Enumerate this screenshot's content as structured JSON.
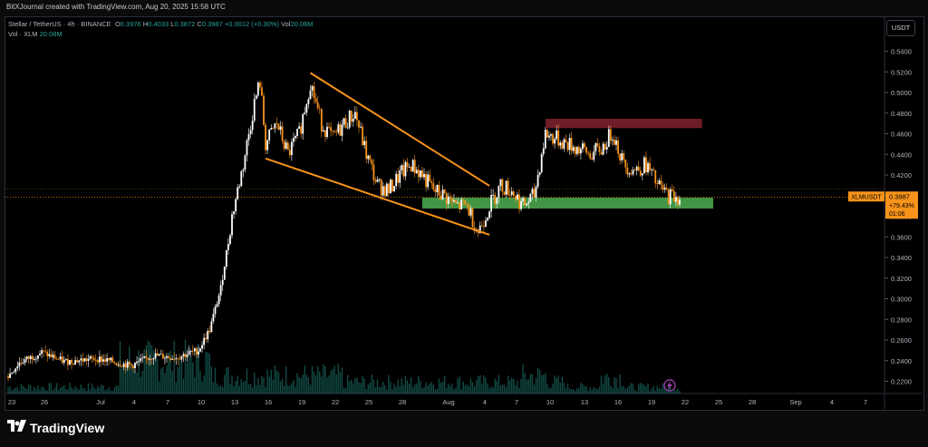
{
  "header": {
    "author_line": "BitXJournal created with TradingView.com, Aug 20, 2025 15:58 UTC",
    "symbol": "Stellar / TetherUS · 4h · BINANCE",
    "ohlc": {
      "o_label": "O",
      "o": "0.3976",
      "h_label": "H",
      "h": "0.4033",
      "l_label": "L",
      "l": "0.3872",
      "c_label": "C",
      "c": "0.3987",
      "change": "+0.0012 (+0.30%)",
      "vol_label": "Vol",
      "vol": "20.08M"
    },
    "volume_legend": {
      "label": "Vol · XLM",
      "value": "20.08M"
    }
  },
  "currency_button": "USDT",
  "price_tag": {
    "symbol": "XLMUSDT",
    "price": "0.3987",
    "change": "+79.43%",
    "countdown": "01:06"
  },
  "branding": "TradingView",
  "chart_data": {
    "type": "candlestick",
    "y_unit": "USDT",
    "ylim": [
      0.2,
      0.55
    ],
    "y_ticks": [
      "0.5400",
      "0.5200",
      "0.5000",
      "0.4800",
      "0.4600",
      "0.4400",
      "0.4200",
      "0.4000",
      "0.3800",
      "0.3600",
      "0.3400",
      "0.3200",
      "0.3000",
      "0.2800",
      "0.2600",
      "0.2400",
      "0.2200"
    ],
    "x_ticks": [
      "23",
      "26",
      "Jul",
      "4",
      "7",
      "10",
      "13",
      "16",
      "19",
      "22",
      "25",
      "28",
      "Aug",
      "4",
      "7",
      "10",
      "13",
      "16",
      "19",
      "22",
      "25",
      "28",
      "Sep",
      "4",
      "7"
    ],
    "close_series": [
      [
        "Jun 22",
        0.225
      ],
      [
        "Jun 23",
        0.238
      ],
      [
        "Jun 25",
        0.248
      ],
      [
        "Jun 27",
        0.239
      ],
      [
        "Jun 30",
        0.242
      ],
      [
        "Jul 2",
        0.235
      ],
      [
        "Jul 4",
        0.245
      ],
      [
        "Jul 6",
        0.243
      ],
      [
        "Jul 8",
        0.25
      ],
      [
        "Jul 9",
        0.27
      ],
      [
        "Jul 10",
        0.31
      ],
      [
        "Jul 11",
        0.38
      ],
      [
        "Jul 12",
        0.43
      ],
      [
        "Jul 13",
        0.49
      ],
      [
        "Jul 13.5",
        0.51
      ],
      [
        "Jul 14",
        0.45
      ],
      [
        "Jul 15",
        0.47
      ],
      [
        "Jul 16",
        0.44
      ],
      [
        "Jul 17",
        0.46
      ],
      [
        "Jul 18",
        0.51
      ],
      [
        "Jul 19",
        0.47
      ],
      [
        "Jul 20",
        0.455
      ],
      [
        "Jul 21",
        0.47
      ],
      [
        "Jul 22",
        0.48
      ],
      [
        "Jul 23",
        0.44
      ],
      [
        "Jul 24",
        0.41
      ],
      [
        "Jul 25",
        0.405
      ],
      [
        "Jul 26",
        0.42
      ],
      [
        "Jul 27",
        0.43
      ],
      [
        "Jul 28",
        0.42
      ],
      [
        "Jul 29",
        0.405
      ],
      [
        "Jul 30",
        0.4
      ],
      [
        "Jul 31",
        0.39
      ],
      [
        "Aug 1",
        0.39
      ],
      [
        "Aug 2",
        0.365
      ],
      [
        "Aug 3",
        0.39
      ],
      [
        "Aug 4",
        0.41
      ],
      [
        "Aug 5",
        0.405
      ],
      [
        "Aug 6",
        0.39
      ],
      [
        "Aug 7",
        0.4
      ],
      [
        "Aug 8",
        0.46
      ],
      [
        "Aug 9",
        0.455
      ],
      [
        "Aug 10",
        0.45
      ],
      [
        "Aug 11",
        0.445
      ],
      [
        "Aug 12",
        0.44
      ],
      [
        "Aug 13",
        0.445
      ],
      [
        "Aug 14",
        0.462
      ],
      [
        "Aug 15",
        0.43
      ],
      [
        "Aug 16",
        0.425
      ],
      [
        "Aug 17",
        0.43
      ],
      [
        "Aug 18",
        0.41
      ],
      [
        "Aug 19",
        0.4
      ],
      [
        "Aug 20",
        0.3987
      ]
    ],
    "annotations": {
      "channel_upper": [
        [
          "Jul 18",
          0.519
        ],
        [
          "Aug 3",
          0.4095
        ]
      ],
      "channel_lower": [
        [
          "Jul 14",
          0.436
        ],
        [
          "Aug 3",
          0.362
        ]
      ],
      "support_zone": {
        "from": "Jul 28",
        "to": "Aug 23",
        "y": [
          0.3875,
          0.398
        ]
      },
      "resistance_zone": {
        "from": "Aug 8",
        "to": "Aug 22",
        "y": [
          0.4655,
          0.4745
        ]
      }
    },
    "last_price": 0.3987,
    "grid": false,
    "legend": "top-left",
    "colors": {
      "up": "#ffffff",
      "down": "#f7931a",
      "volume": "#26a69a",
      "trendline": "#f7931a",
      "support": "#4caf50",
      "resistance": "#7a1f2b",
      "price_tag": "#f7931a"
    }
  }
}
